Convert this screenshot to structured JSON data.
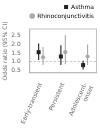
{
  "chart_data": {
    "type": "errorbar",
    "categories": [
      "Early-transient",
      "Persistent",
      "Adolescent-\nonset"
    ],
    "series": [
      {
        "name": "Asthma",
        "color": "#222222",
        "marker": "square",
        "values": [
          1.55,
          1.3,
          0.8
        ],
        "ci_low": [
          1.1,
          0.8,
          0.55
        ],
        "ci_high": [
          2.05,
          1.95,
          1.05
        ]
      },
      {
        "name": "Rhinoconjunctivitis",
        "color": "#aaaaaa",
        "marker": "circle",
        "values": [
          1.25,
          1.55,
          1.3
        ],
        "ci_low": [
          0.8,
          0.85,
          0.8
        ],
        "ci_high": [
          1.85,
          2.55,
          2.0
        ]
      }
    ],
    "reference_line": 1.0,
    "y_label": "Odds ratio (95% CI)",
    "ylim": [
      0.35,
      2.9
    ],
    "yticks": [
      0.5,
      {
        "value": 1.0,
        "label": "1.0"
      },
      1.5,
      {
        "value": 2.0,
        "label": "2.0"
      },
      2.5
    ],
    "grid": false,
    "legend": "upper right"
  }
}
